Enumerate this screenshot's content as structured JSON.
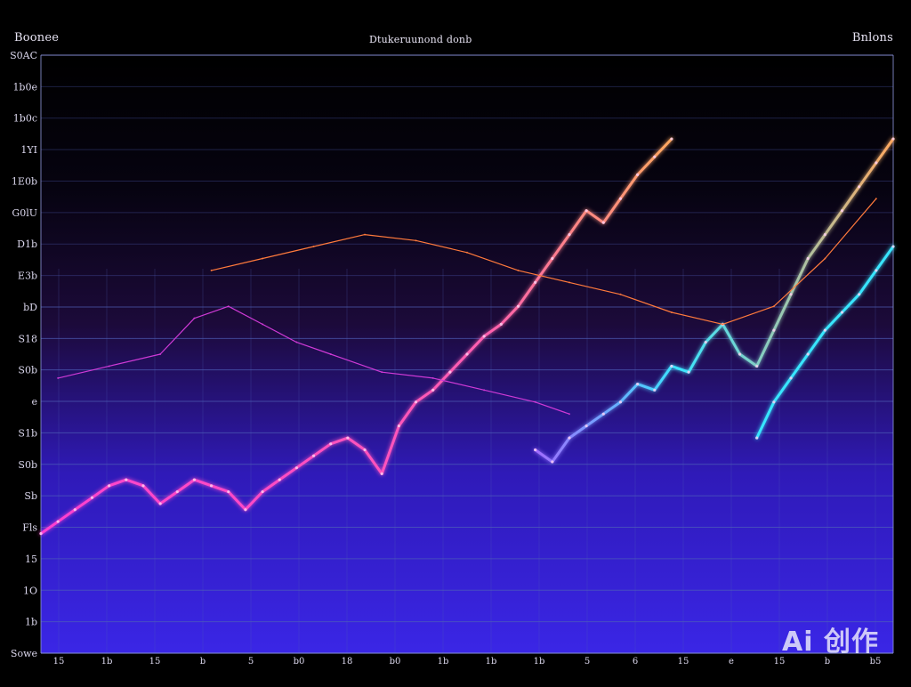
{
  "header": {
    "top_left": "Boonee",
    "top_center": "Dtukeruunond donb",
    "top_right": "Bnlons"
  },
  "watermark": "Ai 创作",
  "colors": {
    "background_top": "#000000",
    "background_mid": "#1c0a3a",
    "background_bottom": "#3a26e6",
    "grid": "#4f5fb8",
    "series_main_start": "#ff3fd2",
    "series_main_end": "#ffa860",
    "series_cyan": "#39e6ff",
    "series_thin_magenta": "#cf3ad6",
    "series_thin_orange": "#ff7a3c"
  },
  "chart_data": {
    "type": "line",
    "title": "Dtukeruunond donb",
    "xlabel": "",
    "ylabel": "",
    "ytick_labels": [
      "S0AC",
      "1b0e",
      "1b0c",
      "1YI",
      "1E0b",
      "G0lU",
      "D1b",
      "E3b",
      "bD",
      "S18",
      "S0b",
      "e",
      "S1b",
      "S0b",
      "Sb",
      "Fls",
      "15",
      "1O",
      "1b",
      "Sowe"
    ],
    "xtick_labels": [
      "15",
      "1b",
      "15",
      "b",
      "5",
      "b0",
      "18",
      "b0",
      "1b",
      "1b",
      "1b",
      "5",
      "6",
      "15",
      "e",
      "15",
      "b",
      "b5"
    ],
    "xlim": [
      0,
      100
    ],
    "ylim": [
      0,
      100
    ],
    "grid": true,
    "series": [
      {
        "x": [
          0,
          2,
          4,
          6,
          8,
          10,
          12,
          14,
          16,
          18,
          20,
          22,
          24,
          26,
          28,
          30,
          32,
          34,
          36,
          38,
          40,
          42,
          44,
          46,
          48,
          50,
          52,
          54,
          56,
          58,
          60,
          62,
          64,
          66,
          68,
          70,
          72,
          74
        ],
        "y": [
          20,
          22,
          24,
          26,
          28,
          29,
          28,
          25,
          27,
          29,
          28,
          27,
          24,
          27,
          29,
          31,
          33,
          35,
          36,
          34,
          30,
          38,
          42,
          44,
          47,
          50,
          53,
          55,
          58,
          62,
          66,
          70,
          74,
          72,
          76,
          80,
          83,
          86
        ]
      },
      {
        "x": [
          58,
          60,
          62,
          64,
          66,
          68,
          70,
          72,
          74,
          76,
          78,
          80,
          82,
          84,
          86,
          88,
          90,
          92,
          94,
          96,
          98,
          100
        ],
        "y": [
          34,
          32,
          36,
          38,
          40,
          42,
          45,
          44,
          48,
          47,
          52,
          55,
          50,
          48,
          54,
          60,
          66,
          70,
          74,
          78,
          82,
          86
        ]
      },
      {
        "x": [
          84,
          86,
          88,
          90,
          92,
          94,
          96,
          98,
          100
        ],
        "y": [
          36,
          42,
          46,
          50,
          54,
          57,
          60,
          64,
          68
        ]
      },
      {
        "x": [
          2,
          8,
          14,
          18,
          22,
          26,
          30,
          34,
          40,
          46,
          52,
          58,
          62
        ],
        "y": [
          46,
          48,
          50,
          56,
          58,
          55,
          52,
          50,
          47,
          46,
          44,
          42,
          40
        ]
      },
      {
        "x": [
          20,
          26,
          32,
          38,
          44,
          50,
          56,
          62,
          68,
          74,
          80,
          86,
          92,
          98
        ],
        "y": [
          64,
          66,
          68,
          70,
          69,
          67,
          64,
          62,
          60,
          57,
          55,
          58,
          66,
          76
        ]
      }
    ]
  }
}
